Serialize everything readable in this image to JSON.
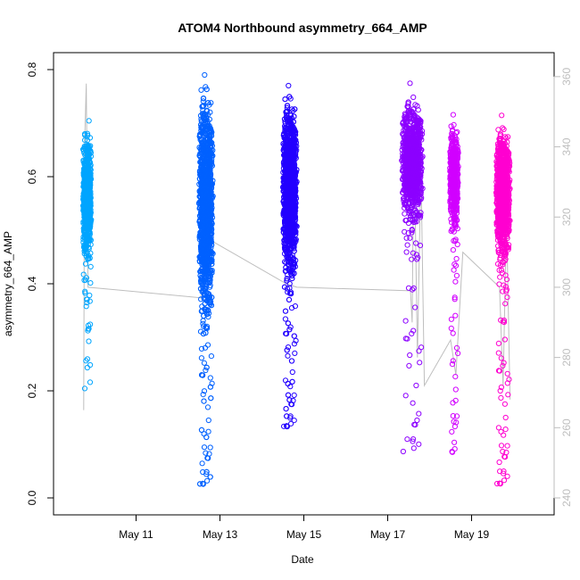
{
  "chart_data": {
    "type": "scatter",
    "title": "ATOM4 Northbound asymmetry_664_AMP",
    "xlabel": "Date",
    "ylabel": "asymmetry_664_AMP",
    "xlim": [
      "2024-05-09T12:00",
      "2024-05-20T12:00"
    ],
    "ylim": [
      0.0,
      0.8
    ],
    "y2lim": [
      240,
      362
    ],
    "x_ticks": [
      "May 11",
      "May 13",
      "May 15",
      "May 17",
      "May 19"
    ],
    "x_tick_dates": [
      "2024-05-11",
      "2024-05-13",
      "2024-05-15",
      "2024-05-17",
      "2024-05-19"
    ],
    "y_ticks": [
      "0.0",
      "0.2",
      "0.4",
      "0.6",
      "0.8"
    ],
    "y2_ticks": [
      "240",
      "260",
      "280",
      "300",
      "320",
      "340",
      "360"
    ],
    "grid": false,
    "marker": "open-circle",
    "series": [
      {
        "color": "#00a5ff",
        "x_center": "2024-05-09T20:00",
        "x_halfwidth_hours": 2.5,
        "y_center": 0.56,
        "y_spread": 0.05,
        "y_min": 0.2,
        "y_max": 0.71,
        "n": 700
      },
      {
        "color": "#0061ff",
        "x_center": "2024-05-12T16:00",
        "x_halfwidth_hours": 4,
        "y_center": 0.55,
        "y_spread": 0.09,
        "y_min": 0.01,
        "y_max": 0.79,
        "n": 1600
      },
      {
        "color": "#2300ff",
        "x_center": "2024-05-14T16:00",
        "x_halfwidth_hours": 4,
        "y_center": 0.58,
        "y_spread": 0.07,
        "y_min": 0.12,
        "y_max": 0.77,
        "n": 1500
      },
      {
        "color": "#8c00ff",
        "x_center": "2024-05-17T14:00",
        "x_halfwidth_hours": 6,
        "y_center": 0.63,
        "y_spread": 0.05,
        "y_min": 0.07,
        "y_max": 0.8,
        "n": 900
      },
      {
        "color": "#d100ff",
        "x_center": "2024-05-18T14:00",
        "x_halfwidth_hours": 2.5,
        "y_center": 0.6,
        "y_spread": 0.04,
        "y_min": 0.07,
        "y_max": 0.74,
        "n": 600
      },
      {
        "color": "#ff00d0",
        "x_center": "2024-05-19T18:00",
        "x_halfwidth_hours": 4,
        "y_center": 0.57,
        "y_spread": 0.05,
        "y_min": 0.01,
        "y_max": 0.75,
        "n": 1100
      }
    ],
    "secondary_line": {
      "color": "#bebebe",
      "axis": "right",
      "points": [
        {
          "x": "2024-05-09T18:00",
          "y": 265
        },
        {
          "x": "2024-05-09T18:30",
          "y": 340
        },
        {
          "x": "2024-05-09T19:30",
          "y": 358
        },
        {
          "x": "2024-05-09T20:30",
          "y": 300
        },
        {
          "x": "2024-05-12T13:00",
          "y": 297
        },
        {
          "x": "2024-05-12T16:00",
          "y": 310
        },
        {
          "x": "2024-05-12T20:00",
          "y": 313
        },
        {
          "x": "2024-05-14T14:00",
          "y": 301
        },
        {
          "x": "2024-05-14T20:00",
          "y": 300
        },
        {
          "x": "2024-05-17T13:00",
          "y": 299
        },
        {
          "x": "2024-05-17T14:00",
          "y": 290
        },
        {
          "x": "2024-05-17T15:00",
          "y": 345
        },
        {
          "x": "2024-05-17T17:00",
          "y": 280
        },
        {
          "x": "2024-05-17T19:00",
          "y": 335
        },
        {
          "x": "2024-05-17T21:00",
          "y": 272
        },
        {
          "x": "2024-05-18T12:00",
          "y": 285
        },
        {
          "x": "2024-05-18T15:00",
          "y": 275
        },
        {
          "x": "2024-05-18T19:00",
          "y": 310
        },
        {
          "x": "2024-05-19T16:00",
          "y": 300
        },
        {
          "x": "2024-05-19T18:00",
          "y": 272
        },
        {
          "x": "2024-05-19T20:00",
          "y": 320
        },
        {
          "x": "2024-05-19T22:00",
          "y": 268
        }
      ]
    }
  }
}
